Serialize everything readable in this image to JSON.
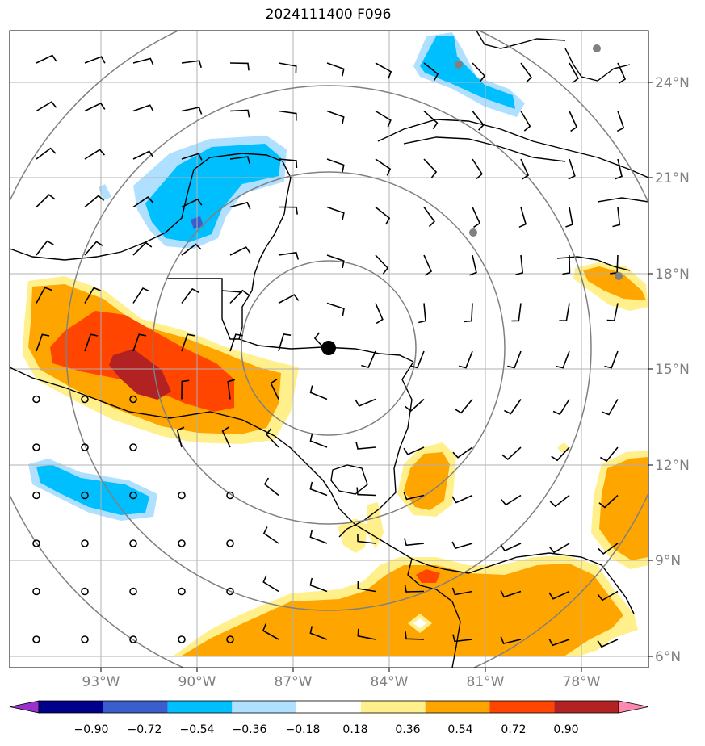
{
  "title": "2024111400 F096",
  "axes": {
    "lon_labels": [
      "93°W",
      "90°W",
      "87°W",
      "84°W",
      "81°W",
      "78°W"
    ],
    "lat_labels": [
      "24°N",
      "21°N",
      "18°N",
      "15°N",
      "12°N",
      "9°N",
      "6°N"
    ],
    "lon_range": [
      -96.25,
      -76.25
    ],
    "lat_range": [
      5.7,
      25.6
    ],
    "gridlines": true
  },
  "storm_center": {
    "lon": -85.7,
    "lat": 15.6
  },
  "range_rings_deg": [
    2.8,
    5.6,
    8.4,
    11.2
  ],
  "colorbar": {
    "ticks": [
      "−0.90",
      "−0.72",
      "−0.54",
      "−0.36",
      "−0.18",
      "0.18",
      "0.36",
      "0.54",
      "0.72",
      "0.90"
    ],
    "colors": [
      "#9932cc",
      "#00008b",
      "#3a5fcd",
      "#00bfff",
      "#b0e0ff",
      "#ffffff",
      "#fff08c",
      "#ffa500",
      "#ff4500",
      "#b22222",
      "#ff88b0"
    ]
  },
  "fill_colors": {
    "light_blue": "#b0e0ff",
    "blue": "#00bfff",
    "dark_blue": "#3a5fcd",
    "light_yellow": "#fff08c",
    "orange": "#ffa500",
    "red_orange": "#ff4500",
    "dark_red": "#b22222"
  }
}
